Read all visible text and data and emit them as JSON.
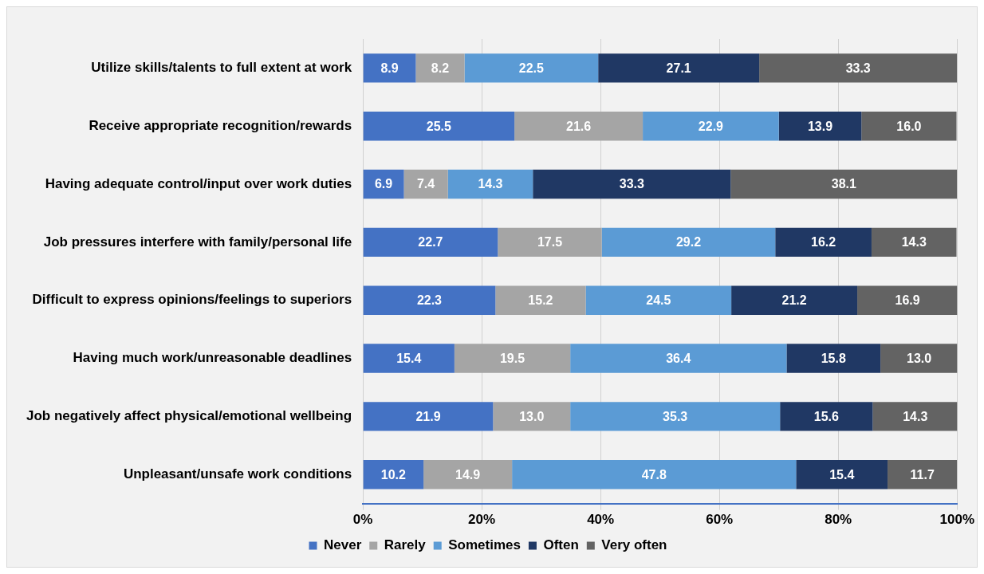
{
  "chart_data": {
    "type": "bar",
    "orientation": "horizontal",
    "stacked": true,
    "grid": "x",
    "legend": "bottom",
    "categories": [
      "Utilize skills/talents to full extent at work",
      "Receive appropriate recognition/rewards",
      "Having adequate control/input over work duties",
      "Job pressures interfere with family/personal life",
      "Difficult to express opinions/feelings to superiors",
      "Having much work/unreasonable deadlines",
      "Job negatively affect physical/emotional wellbeing",
      "Unpleasant/unsafe work conditions"
    ],
    "series": [
      {
        "name": "Never",
        "color": "#4472c4",
        "values": [
          8.9,
          25.5,
          6.9,
          22.7,
          22.3,
          15.4,
          21.9,
          10.2
        ],
        "value_labels": [
          "8.9",
          "25.5",
          "6.9",
          "22.7",
          "22.3",
          "15.4",
          "21.9",
          "10.2"
        ]
      },
      {
        "name": "Rarely",
        "color": "#a5a5a5",
        "values": [
          8.2,
          21.6,
          7.4,
          17.5,
          15.2,
          19.5,
          13,
          14.9
        ],
        "value_labels": [
          "8.2",
          "21.6",
          "7.4",
          "17.5",
          "15.2",
          "19.5",
          "13.0",
          "14.9"
        ]
      },
      {
        "name": "Sometimes",
        "color": "#5b9bd5",
        "values": [
          22.5,
          22.9,
          14.3,
          29.2,
          24.5,
          36.4,
          35.3,
          47.8
        ],
        "value_labels": [
          "22.5",
          "22.9",
          "14.3",
          "29.2",
          "24.5",
          "36.4",
          "35.3",
          "47.8"
        ]
      },
      {
        "name": "Often",
        "color": "#203864",
        "values": [
          27.1,
          13.9,
          33.3,
          16.2,
          21.2,
          15.8,
          15.6,
          15.4
        ],
        "value_labels": [
          "27.1",
          "13.9",
          "33.3",
          "16.2",
          "21.2",
          "15.8",
          "15.6",
          "15.4"
        ]
      },
      {
        "name": "Very often",
        "color": "#636363",
        "values": [
          33.3,
          16,
          38.1,
          14.3,
          16.9,
          13,
          14.3,
          11.7
        ],
        "value_labels": [
          "33.3",
          "16.0",
          "38.1",
          "14.3",
          "16.9",
          "13.0",
          "14.3",
          "11.7"
        ]
      }
    ],
    "xlim": [
      0,
      100
    ],
    "xticks": [
      {
        "value": 0,
        "label": "0%"
      },
      {
        "value": 20,
        "label": "20%"
      },
      {
        "value": 40,
        "label": "40%"
      },
      {
        "value": 60,
        "label": "60%"
      },
      {
        "value": 80,
        "label": "80%"
      },
      {
        "value": 100,
        "label": "100%"
      }
    ]
  }
}
